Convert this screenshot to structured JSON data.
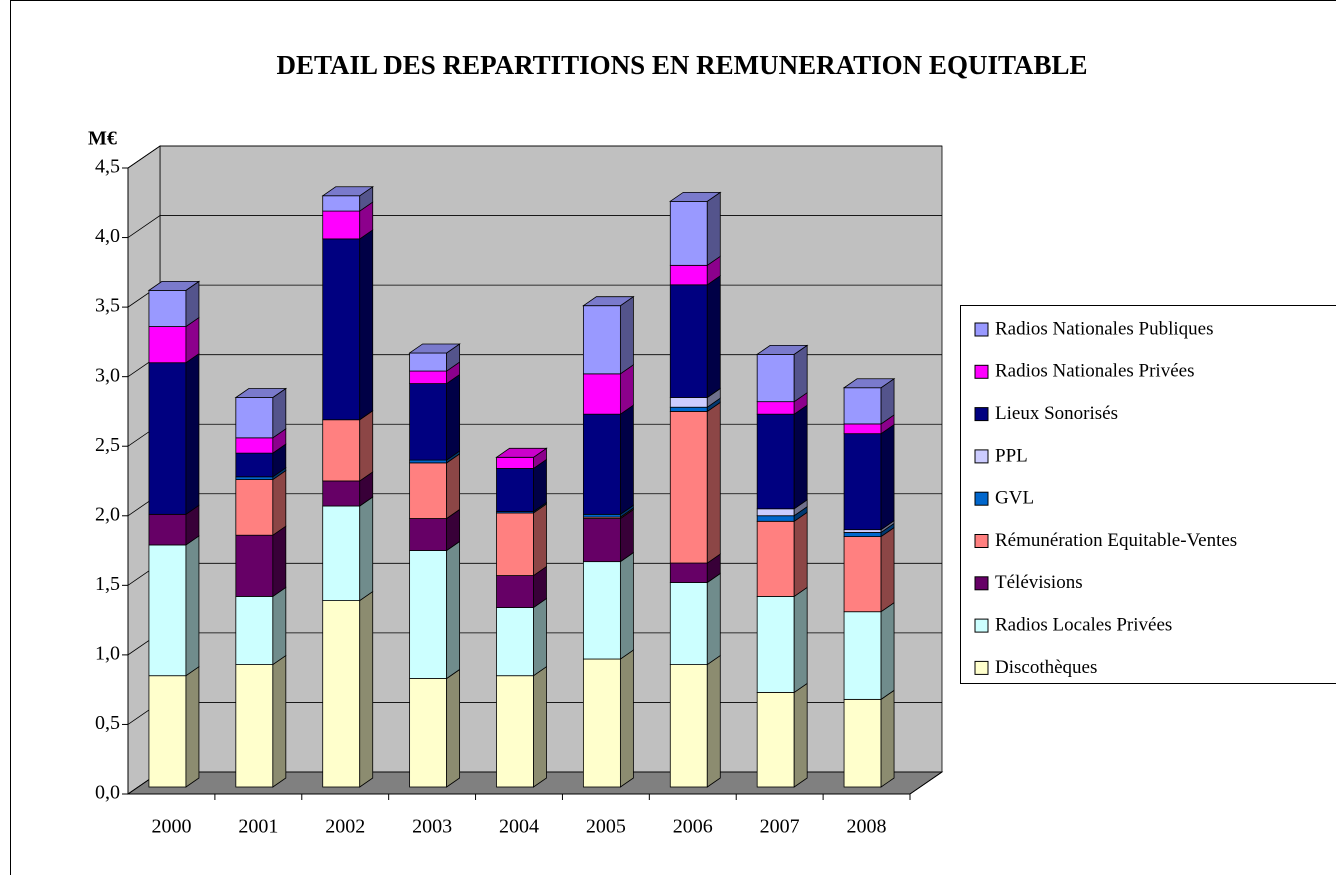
{
  "chart_data": {
    "type": "bar3d_stacked",
    "title": "DETAIL DES REPARTITIONS EN REMUNERATION EQUITABLE",
    "y_label": "M€",
    "categories": [
      "2000",
      "2001",
      "2002",
      "2003",
      "2004",
      "2005",
      "2006",
      "2007",
      "2008"
    ],
    "series": [
      {
        "name": "Discothèques",
        "color": "#FFFFCC",
        "values": [
          0.8,
          0.88,
          1.34,
          0.78,
          0.8,
          0.92,
          0.88,
          0.68,
          0.63
        ]
      },
      {
        "name": "Radios Locales Privées",
        "color": "#CCFFFF",
        "values": [
          0.94,
          0.49,
          0.68,
          0.92,
          0.49,
          0.7,
          0.59,
          0.69,
          0.63
        ]
      },
      {
        "name": "Télévisions",
        "color": "#660066",
        "values": [
          0.22,
          0.44,
          0.18,
          0.23,
          0.23,
          0.31,
          0.14,
          0,
          0
        ]
      },
      {
        "name": "Rémunération Equitable-Ventes",
        "color": "#FF8080",
        "values": [
          0,
          0.4,
          0.44,
          0.4,
          0.45,
          0.01,
          1.09,
          0.54,
          0.54
        ]
      },
      {
        "name": "GVL",
        "color": "#0066CC",
        "values": [
          0,
          0.02,
          0,
          0.02,
          0.01,
          0.02,
          0.03,
          0.04,
          0.03
        ]
      },
      {
        "name": "PPL",
        "color": "#CCCCFF",
        "values": [
          0,
          0,
          0,
          0,
          0,
          0,
          0.07,
          0.05,
          0.02
        ]
      },
      {
        "name": "Lieux Sonorisés",
        "color": "#000080",
        "values": [
          1.09,
          0.17,
          1.3,
          0.55,
          0.31,
          0.72,
          0.81,
          0.68,
          0.69
        ]
      },
      {
        "name": "Radios Nationales Privées",
        "color": "#FF00FF",
        "values": [
          0.26,
          0.11,
          0.2,
          0.09,
          0.08,
          0.29,
          0.14,
          0.09,
          0.07
        ]
      },
      {
        "name": "Radios Nationales Publiques",
        "color": "#9999FF",
        "values": [
          0.26,
          0.29,
          0.11,
          0.13,
          0,
          0.49,
          0.46,
          0.34,
          0.26
        ]
      }
    ],
    "ylim": [
      0,
      4.5
    ],
    "yticks": [
      {
        "value": 0,
        "label": "0,0"
      },
      {
        "value": 0.5,
        "label": "0,5"
      },
      {
        "value": 1,
        "label": "1,0"
      },
      {
        "value": 1.5,
        "label": "1,5"
      },
      {
        "value": 2,
        "label": "2,0"
      },
      {
        "value": 2.5,
        "label": "2,5"
      },
      {
        "value": 3,
        "label": "3,0"
      },
      {
        "value": 3.5,
        "label": "3,5"
      },
      {
        "value": 4,
        "label": "4,0"
      },
      {
        "value": 4.5,
        "label": "4,5"
      }
    ],
    "grid": true,
    "legend": "right"
  }
}
